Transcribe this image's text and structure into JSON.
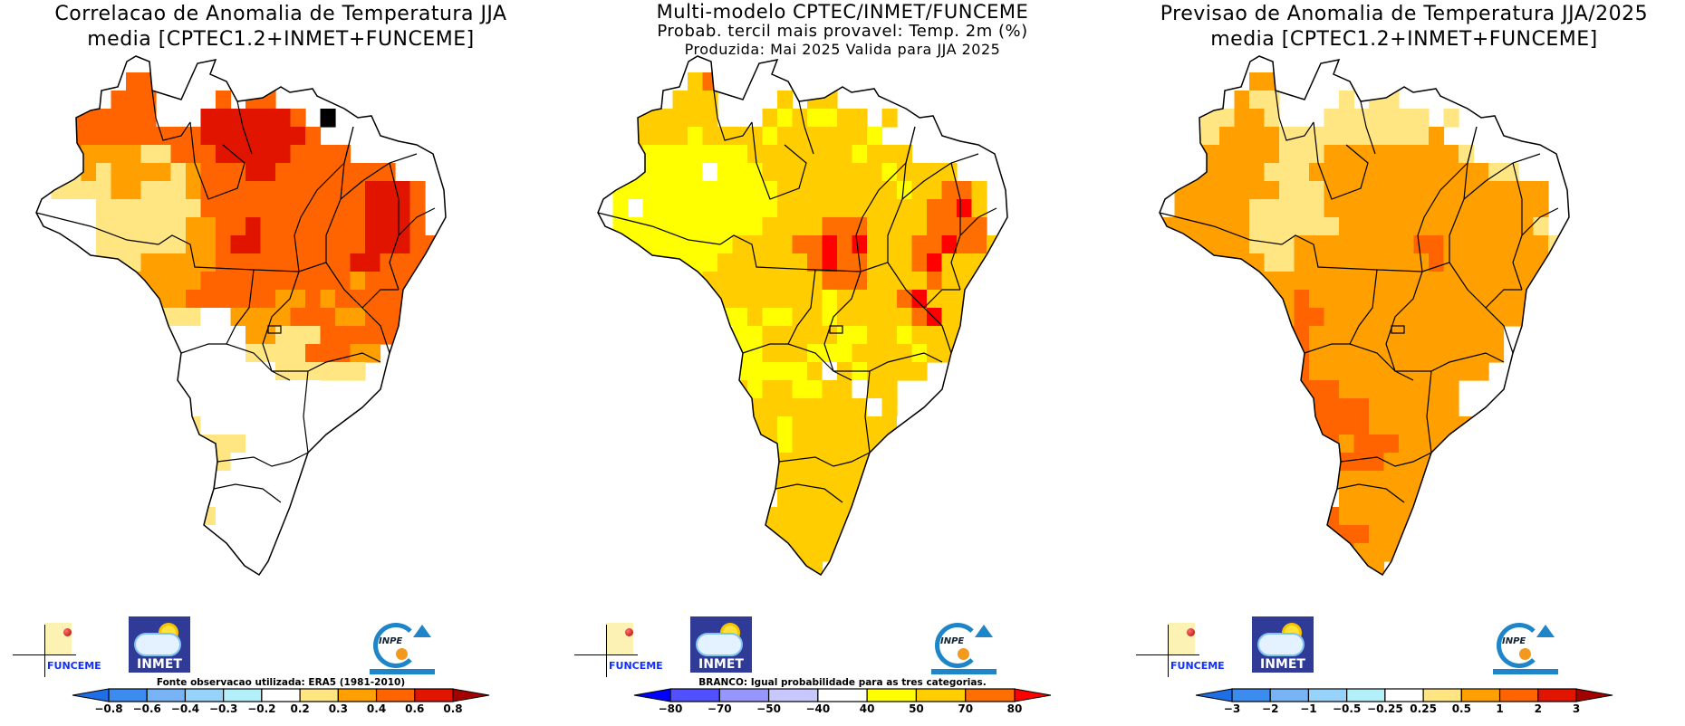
{
  "panels": [
    {
      "id": "correlation",
      "title_lines": [
        "Correlacao de Anomalia de Temperatura JJA",
        "media [CPTEC1.2+INMET+FUNCEME]"
      ],
      "note": "Fonte observacao utilizada: ERA5 (1981-2010)",
      "colorbar": {
        "labels": [
          "-0.8",
          "-0.6",
          "-0.4",
          "-0.3",
          "-0.2",
          "0.2",
          "0.3",
          "0.4",
          "0.6",
          "0.8"
        ],
        "colors": [
          "#1e6ee6",
          "#3c8cf0",
          "#78b4f5",
          "#96d2fa",
          "#b4f0fa",
          "#ffffff",
          "#ffe682",
          "#ffa000",
          "#ff6400",
          "#e11400",
          "#a50000"
        ]
      },
      "grid_classes": [
        "............................",
        "......33.....................",
        ".....333....3.33.............",
        "..333333...4444443.5.........",
        "..33333333344444443.........",
        "..3222211333444443333.......",
        ".11212222123334433333333....",
        ".1111221112333333333334443..",
        ".0001111111333333333334443..",
        "00001111112233433333334443..",
        "0000111111223443333333444333",
        ".00011122222333333333443333.",
        "..0011222223333333333233333.",
        "...01122223333332232333333..",
        "....11011110022223332233333.",
        ".....10000000022111333333...",
        ".....100000000111133322.....",
        "......1000000000111111......",
        ".......310000000000.........",
        ".......3110000000000........",
        ".......33110000000000.......",
        "........3111110000000.......",
        "........321110000000........",
        ".........21100000000........",
        ".........11.00000000........",
        "..........11000000..........",
        ".........110000000..........",
        "........11100000............",
        ".........110000.............",
        "..........0000..............",
        "...........00..............."
      ],
      "class_colors": [
        "#ffffff",
        "#ffe682",
        "#ffa000",
        "#ff6400",
        "#e11400"
      ]
    },
    {
      "id": "probability",
      "title_lines": [
        "Multi-modelo CPTEC/INMET/FUNCEME",
        "Probab. tercil mais provavel: Temp. 2m (%)",
        "Produzida: Mai 2025  Valida para JJA 2025"
      ],
      "note": "BRANCO: Igual probabilidade para as tres categorias.",
      "colorbar": {
        "labels": [
          "-80",
          "-70",
          "-50",
          "-40",
          "40",
          "50",
          "70",
          "80"
        ],
        "colors": [
          "#0000ff",
          "#5050ff",
          "#9696ff",
          "#c8c8ff",
          "#ffffff",
          "#ffff00",
          "#ffcd00",
          "#ff6e00",
          "#ff0000"
        ]
      },
      "grid_classes": [
        "............................",
        "......23.....................",
        ".....222....2.22.............",
        "..222222...2121122.2.........",
        "..22221222212222221.........",
        "..2111111122222221222.......",
        ".11111101112222222212222....",
        ".1111111111122222222122332..",
        ".1011111111122222222223342..",
        "01111111111222233322223333..",
        "1111111112222334342223343322",
        ".11111112222223433222342222.",
        "..1111122222222333222232222.",
        "...11222222222212222342222..",
        "....22211121122122222342222.",
        ".....21001122222112212222...",
        ".....2000112221112222122....",
        "......2101111120212222......",
        ".......2221221122022........",
        ".......2422222222202........",
        ".......24222122222220.......",
        "........2222122222221.......",
        "........3422222222222.......",
        ".........22222222222........",
        ".........22.22222222........",
        "..........22222222..........",
        ".........222222222..........",
        "........22222222............",
        ".........222222.............",
        "..........2222..............",
        "...........22..............."
      ],
      "class_colors": [
        "#ffffff",
        "#ffff00",
        "#ffcd00",
        "#ff6e00",
        "#ff0000"
      ]
    },
    {
      "id": "anomaly",
      "title_lines": [
        "Previsao de Anomalia de Temperatura JJA/2025",
        "media [CPTEC1.2+INMET+FUNCEME]"
      ],
      "note": "",
      "colorbar": {
        "labels": [
          "-3",
          "-2",
          "-1",
          "-0.5",
          "-0.25",
          "0.25",
          "0.5",
          "1",
          "2",
          "3"
        ],
        "colors": [
          "#1e6ee6",
          "#3c8cf0",
          "#78b4f5",
          "#96d2fa",
          "#b4f0fa",
          "#ffffff",
          "#ffe682",
          "#ffa000",
          "#ff6400",
          "#e11400",
          "#a50000"
        ]
      },
      "grid_classes": [
        "............................",
        "......22.....................",
        ".....211....1.11.............",
        "..111221...1111111.1.........",
        "..11222211111111112.........",
        "..2222221112222222221.......",
        ".22222211122222222222211....",
        ".2222222111222222222222222..",
        ".2222211111222222222222222..",
        "22222211111122222222222221..",
        "2222221112222222233222222211",
        ".22222211222222222322222221.",
        "..2222222222222222222222221.",
        "...22222232222222222222221..",
        "....22222332222222222222221.",
        ".....222332222222222222.....",
        ".....223332222222222222.....",
        "......2233222222222222......",
        ".......3333322222222........",
        ".......3333333222222........",
        ".......33333332222222.......",
        "........3333233322222.......",
        "........222233322222........",
        ".........32222222222........",
        ".........33.22222222........",
        "..........33222222..........",
        ".........233332222..........",
        "........23333222............",
        ".........233322.............",
        "..........2222..............",
        "...........22..............."
      ],
      "class_colors": [
        "#ffffff",
        "#ffe682",
        "#ffa000",
        "#ff6400",
        "#e11400"
      ]
    }
  ],
  "logos": {
    "funceme": "FUNCEME",
    "inmet": "INMET",
    "inpe": "INPE"
  }
}
